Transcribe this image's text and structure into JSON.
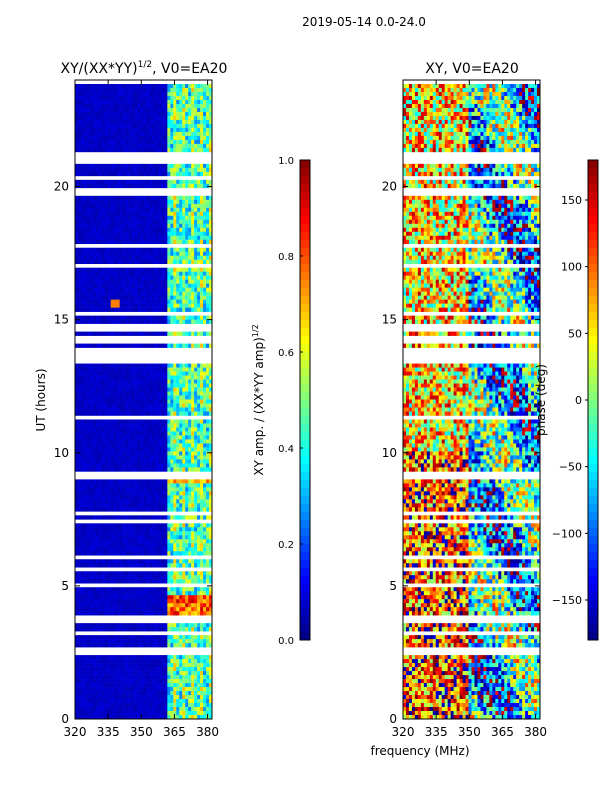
{
  "figure": {
    "suptitle": "2019-05-14 0.0-24.0",
    "xlabel_shared": "frequency (MHz)"
  },
  "colors": {
    "jet_stops": [
      "#00007f",
      "#0000ff",
      "#007fff",
      "#00ffff",
      "#7fff7f",
      "#ffff00",
      "#ff7f00",
      "#ff0000",
      "#7f0000"
    ]
  },
  "chart_data": [
    {
      "type": "heatmap",
      "title": "XY/(XX*YY)^1/2, V0=EA20",
      "title_main": "XY/(XX*YY)",
      "title_exp": "1/2",
      "title_tail": ", V0=EA20",
      "xlabel": "",
      "ylabel": "UT (hours)",
      "xlim": [
        320,
        382
      ],
      "ylim": [
        0,
        24
      ],
      "xticks": [
        320,
        335,
        350,
        365,
        380
      ],
      "yticks": [
        0,
        5,
        10,
        15,
        20
      ],
      "colorbar": {
        "label_main": "XY amp. / (XX*YY amp)",
        "label_exp": "1/2",
        "range": [
          0.0,
          1.0
        ],
        "ticks": [
          "0.0",
          "0.2",
          "0.4",
          "0.6",
          "0.8",
          "1.0"
        ]
      },
      "gaps_hours": [
        [
          13.35,
          14.0
        ],
        [
          14.15,
          14.4
        ],
        [
          14.55,
          14.85
        ],
        [
          14.95,
          15.05
        ],
        [
          2.4,
          2.7
        ],
        [
          7.6,
          7.75
        ],
        [
          3.55,
          3.7
        ],
        [
          21.0,
          21.25
        ],
        [
          19.8,
          19.95
        ]
      ],
      "notable_features": "background ~0.05; vertical bands at 362-382 MHz ~0.3-0.6; hotspot at 4-4.5 h near 0.8; spot at 15.6 h near 338 MHz"
    },
    {
      "type": "heatmap",
      "title": "XY, V0=EA20",
      "xlabel": "frequency (MHz)",
      "ylabel": "",
      "xlim": [
        320,
        382
      ],
      "ylim": [
        0,
        24
      ],
      "xticks": [
        320,
        335,
        350,
        365,
        380
      ],
      "yticks": [
        0,
        5,
        10,
        15,
        20
      ],
      "colorbar": {
        "label": "phase (deg)",
        "range": [
          -180,
          180
        ],
        "ticks": [
          "150",
          "100",
          "50",
          "0",
          "−50",
          "−100",
          "−150"
        ]
      },
      "gaps_hours": [
        [
          13.35,
          14.0
        ],
        [
          14.15,
          14.4
        ],
        [
          14.55,
          14.85
        ],
        [
          14.95,
          15.05
        ],
        [
          2.4,
          2.7
        ],
        [
          7.6,
          7.75
        ],
        [
          3.55,
          3.7
        ],
        [
          21.0,
          21.25
        ],
        [
          19.8,
          19.95
        ]
      ],
      "notable_features": "phase wraps across band; mostly 50-150 deg near 325-350 MHz, noisy elsewhere"
    }
  ]
}
